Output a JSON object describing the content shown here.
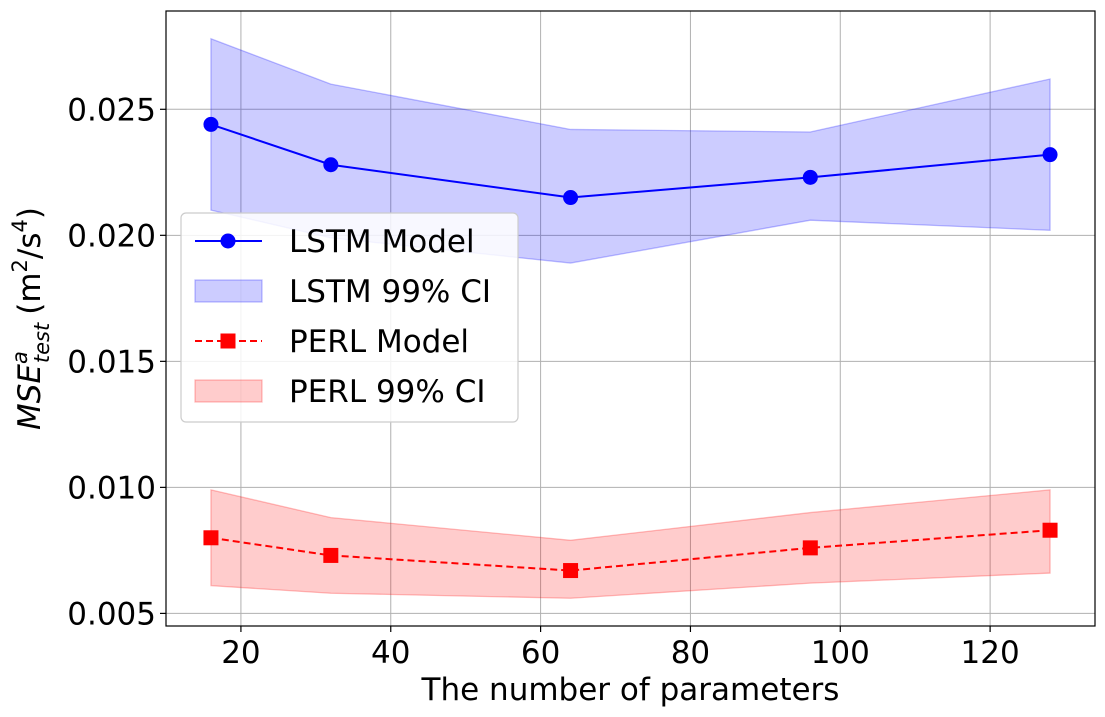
{
  "chart_data": {
    "type": "line",
    "title": "",
    "xlabel": "The number of parameters",
    "ylabel": {
      "base": "MSE",
      "superscript": "a",
      "subscript": "test",
      "unit_prefix": "(m",
      "unit_sup1": "2",
      "unit_mid": "/s",
      "unit_sup2": "4",
      "unit_suffix": ")"
    },
    "xlim": [
      10,
      134
    ],
    "ylim": [
      0.0045,
      0.0289
    ],
    "xticks": [
      20,
      40,
      60,
      80,
      100,
      120
    ],
    "xtick_labels": [
      "20",
      "40",
      "60",
      "80",
      "100",
      "120"
    ],
    "yticks": [
      0.005,
      0.01,
      0.015,
      0.02,
      0.025
    ],
    "ytick_labels": [
      "0.005",
      "0.010",
      "0.015",
      "0.020",
      "0.025"
    ],
    "grid": true,
    "legend_position": "center-left",
    "x": [
      16,
      32,
      64,
      96,
      128
    ],
    "series": [
      {
        "name": "LSTM Model",
        "color": "#0000ff",
        "style": "solid",
        "marker": "circle",
        "values": [
          0.0244,
          0.0228,
          0.0215,
          0.0223,
          0.0232
        ]
      },
      {
        "name": "PERL Model",
        "color": "#ff0000",
        "style": "dashed",
        "marker": "square",
        "values": [
          0.008,
          0.0073,
          0.0067,
          0.0076,
          0.0083
        ]
      }
    ],
    "bands": [
      {
        "name": "LSTM 99% CI",
        "color": "#0000ff",
        "lower": [
          0.021,
          0.0199,
          0.0189,
          0.0206,
          0.0202
        ],
        "upper": [
          0.0278,
          0.026,
          0.0242,
          0.0241,
          0.0262
        ]
      },
      {
        "name": "PERL 99% CI",
        "color": "#ff0000",
        "lower": [
          0.0061,
          0.0058,
          0.0056,
          0.0062,
          0.0066
        ],
        "upper": [
          0.0099,
          0.0088,
          0.0079,
          0.009,
          0.0099
        ]
      }
    ],
    "legend": [
      "LSTM Model",
      "LSTM 99% CI",
      "PERL Model",
      "PERL 99% CI"
    ]
  }
}
